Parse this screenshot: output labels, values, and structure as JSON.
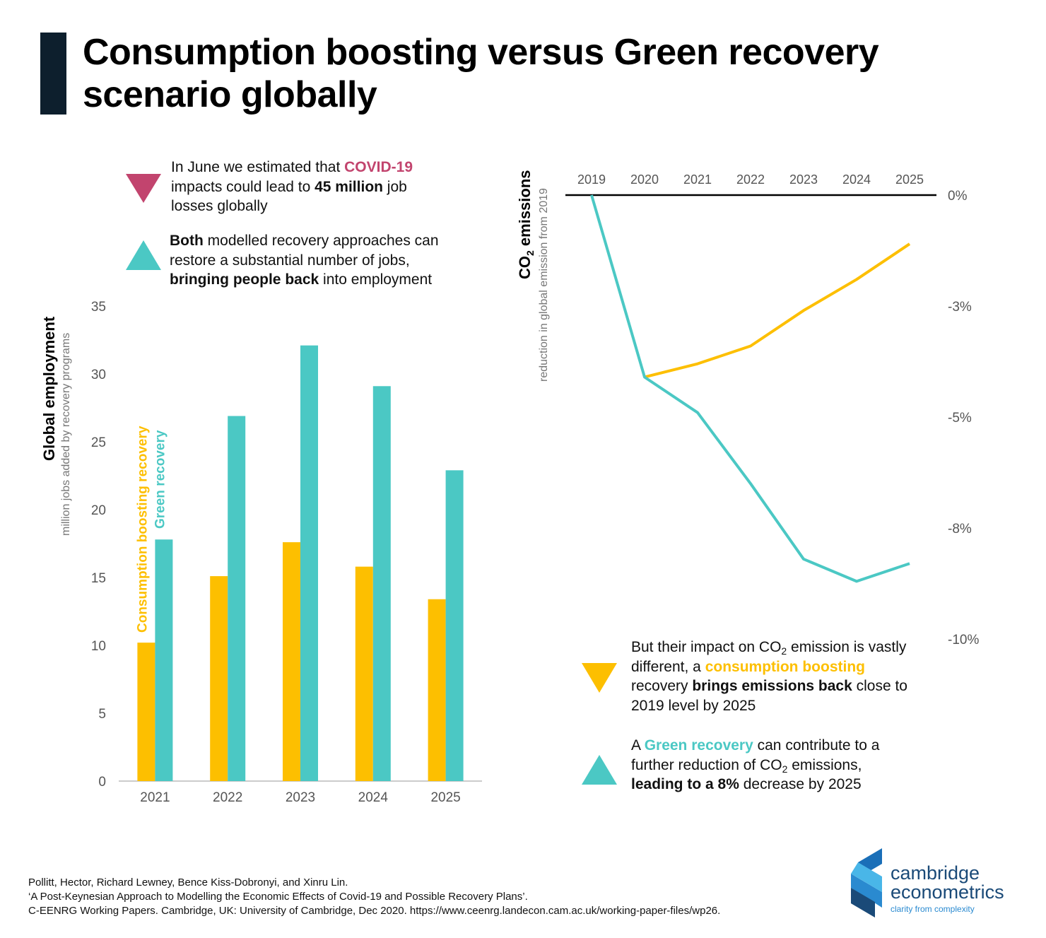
{
  "title": "Consumption boosting versus Green recovery scenario globally",
  "annotations": [
    [
      "In June we estimated that ",
      "COVID-19",
      " impacts could lead to ",
      "45 million",
      " job losses globally"
    ],
    [
      "Both",
      " modelled recovery approaches can restore a substantial number of jobs, ",
      "bringing people back",
      " into employment"
    ],
    [
      "But their impact on CO",
      "2",
      " emission is vastly different, a ",
      "consumption boosting",
      " recovery ",
      "brings emissions back",
      " close to 2019 level by 2025"
    ],
    [
      "A ",
      "Green recovery",
      " can contribute to a further reduction of CO",
      "2",
      " emissions, ",
      "leading to a 8%",
      " decrease by 2025"
    ]
  ],
  "chart_data": [
    {
      "type": "bar",
      "y_title": "Global employment",
      "y_subtitle": "million jobs added by recovery programs",
      "categories": [
        "2021",
        "2022",
        "2023",
        "2024",
        "2025"
      ],
      "series": [
        {
          "name": "Consumption boosting recovery",
          "color": "#fdbf00",
          "values": [
            10.2,
            15.1,
            17.6,
            15.8,
            13.4
          ]
        },
        {
          "name": "Green recovery",
          "color": "#4bc8c4",
          "values": [
            17.8,
            26.9,
            32.1,
            29.1,
            22.9
          ]
        }
      ],
      "ylim": [
        0,
        35
      ],
      "yticks": [
        0,
        5,
        10,
        15,
        20,
        25,
        30,
        35
      ]
    },
    {
      "type": "line",
      "y_title": [
        "CO",
        "2",
        " emissions"
      ],
      "y_subtitle": "reduction in global emission from 2019",
      "categories": [
        "2019",
        "2020",
        "2021",
        "2022",
        "2023",
        "2024",
        "2025"
      ],
      "series": [
        {
          "color": "#fdbf00",
          "values": [
            null,
            -4.1,
            -3.8,
            -3.4,
            -2.6,
            -1.9,
            -1.1
          ]
        },
        {
          "color": "#4bc8c4",
          "values": [
            0,
            -4.1,
            -4.9,
            -6.5,
            -8.2,
            -8.7,
            -8.3
          ]
        }
      ],
      "ylim": [
        -10,
        0
      ],
      "yticks": [
        {
          "value": 0,
          "label": "0%"
        },
        {
          "value": -2.5,
          "label": "-3%"
        },
        {
          "value": -5,
          "label": "-5%"
        },
        {
          "value": -7.5,
          "label": "-8%"
        },
        {
          "value": -10,
          "label": "-10%"
        }
      ]
    }
  ],
  "source": [
    "Pollitt, Hector, Richard Lewney, Bence Kiss-Dobronyi, and Xinru Lin.",
    "‘A Post-Keynesian Approach to Modelling the Economic Effects of Covid-19 and Possible Recovery Plans’.",
    "C-EENRG Working Papers. Cambridge, UK: University of Cambridge, Dec 2020. https://www.ceenrg.landecon.cam.ac.uk/working-paper-files/wp26."
  ],
  "logo": [
    "cambridge",
    "econometrics",
    "clarity from complexity"
  ]
}
